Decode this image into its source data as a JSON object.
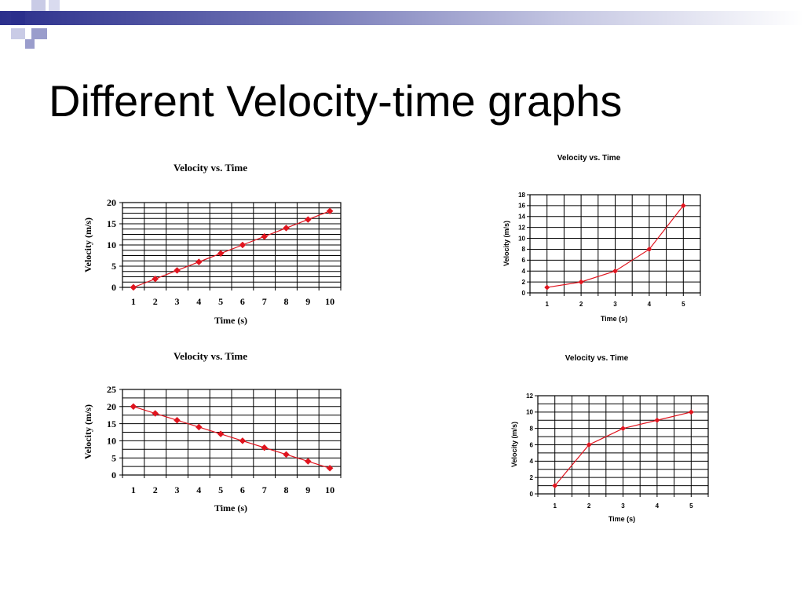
{
  "slide": {
    "title": "Different Velocity-time graphs",
    "accent_dark": "#2b2f8c",
    "accent_light": "#9a9dcc"
  },
  "chart_data": [
    {
      "type": "line",
      "title": "Velocity vs. Time",
      "xlabel": "Time (s)",
      "ylabel": "Velocity (m/s)",
      "categories": [
        1,
        2,
        3,
        4,
        5,
        6,
        7,
        8,
        9,
        10
      ],
      "values": [
        0,
        2,
        4,
        6,
        8,
        10,
        12,
        14,
        16,
        18
      ],
      "ylim": [
        0,
        20
      ],
      "yticks": [
        0,
        5,
        10,
        15,
        20
      ],
      "grid": true,
      "color": "#e0141e"
    },
    {
      "type": "line",
      "title": "Velocity vs. Time",
      "xlabel": "Time (s)",
      "ylabel": "Velocity (m/s)",
      "categories": [
        1,
        2,
        3,
        4,
        5,
        6,
        7,
        8,
        9,
        10
      ],
      "values": [
        20,
        18,
        16,
        14,
        12,
        10,
        8,
        6,
        4,
        2
      ],
      "ylim": [
        0,
        25
      ],
      "yticks": [
        0,
        5,
        10,
        15,
        20,
        25
      ],
      "grid": true,
      "color": "#e0141e"
    },
    {
      "type": "line",
      "title": "Velocity vs. Time",
      "xlabel": "Time (s)",
      "ylabel": "Velocity (m/s)",
      "categories": [
        1,
        2,
        3,
        4,
        5
      ],
      "values": [
        1,
        2,
        4,
        8,
        16
      ],
      "ylim": [
        0,
        18
      ],
      "yticks": [
        0,
        2,
        4,
        6,
        8,
        10,
        12,
        14,
        16,
        18
      ],
      "grid": true,
      "color": "#e0141e"
    },
    {
      "type": "line",
      "title": "Velocity vs. Time",
      "xlabel": "Time (s)",
      "ylabel": "Velocity (m/s)",
      "categories": [
        1,
        2,
        3,
        4,
        5
      ],
      "values": [
        1,
        6,
        8,
        9,
        10
      ],
      "ylim": [
        0,
        12
      ],
      "yticks": [
        0,
        2,
        4,
        6,
        8,
        10,
        12
      ],
      "grid": true,
      "color": "#e0141e"
    }
  ]
}
